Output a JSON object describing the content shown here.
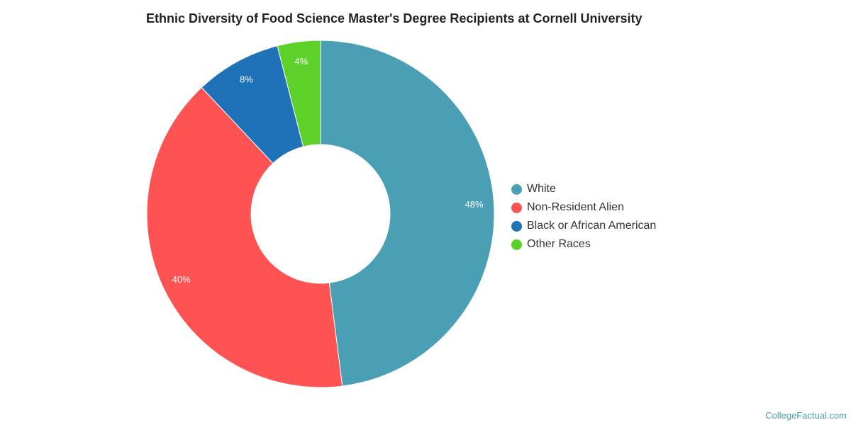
{
  "chart_data": {
    "type": "pie",
    "variant": "donut",
    "title": "Ethnic Diversity of Food Science Master's Degree Recipients at Cornell University",
    "series": [
      {
        "name": "White",
        "value": 48,
        "label": "48%",
        "color": "#4a9fb5"
      },
      {
        "name": "Non-Resident Alien",
        "value": 40,
        "label": "40%",
        "color": "#ff5252"
      },
      {
        "name": "Black or African American",
        "value": 8,
        "label": "8%",
        "color": "#1f72b8"
      },
      {
        "name": "Other Races",
        "value": 4,
        "label": "4%",
        "color": "#5dd12a"
      }
    ],
    "legend_position": "right"
  },
  "source_credit": "CollegeFactual.com"
}
